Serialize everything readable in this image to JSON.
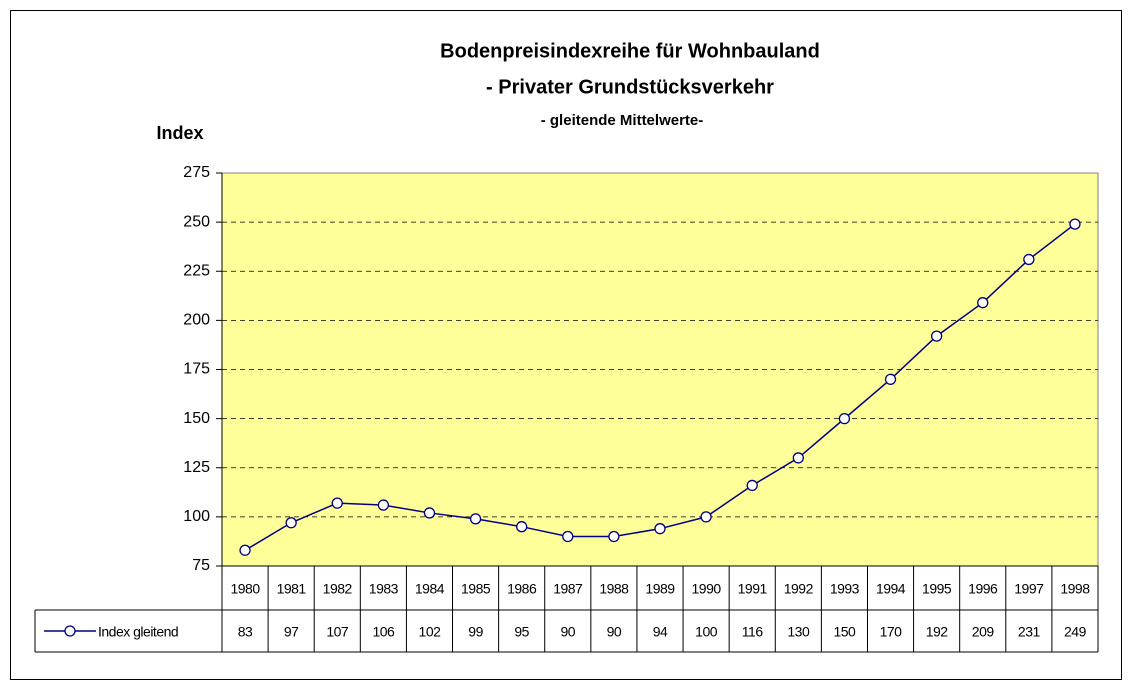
{
  "chart_data": {
    "type": "line",
    "title": "Bodenpreisindexreihe für Wohnbauland",
    "subtitle": "- Privater Grundstücksverkehr",
    "subtitle2": "- gleitende Mittelwerte-",
    "y_label": "Index",
    "categories": [
      "1980",
      "1981",
      "1982",
      "1983",
      "1984",
      "1985",
      "1986",
      "1987",
      "1988",
      "1989",
      "1990",
      "1991",
      "1992",
      "1993",
      "1994",
      "1995",
      "1996",
      "1997",
      "1998"
    ],
    "series": [
      {
        "name": "Index gleitend",
        "color": "#000080",
        "values": [
          83,
          97,
          107,
          106,
          102,
          99,
          95,
          90,
          90,
          94,
          100,
          116,
          130,
          150,
          170,
          192,
          209,
          231,
          249
        ]
      }
    ],
    "ylim": [
      75,
      275
    ],
    "yticks": [
      75,
      100,
      125,
      150,
      175,
      200,
      225,
      250,
      275
    ],
    "grid": true,
    "plot_color": "#ffff99"
  }
}
